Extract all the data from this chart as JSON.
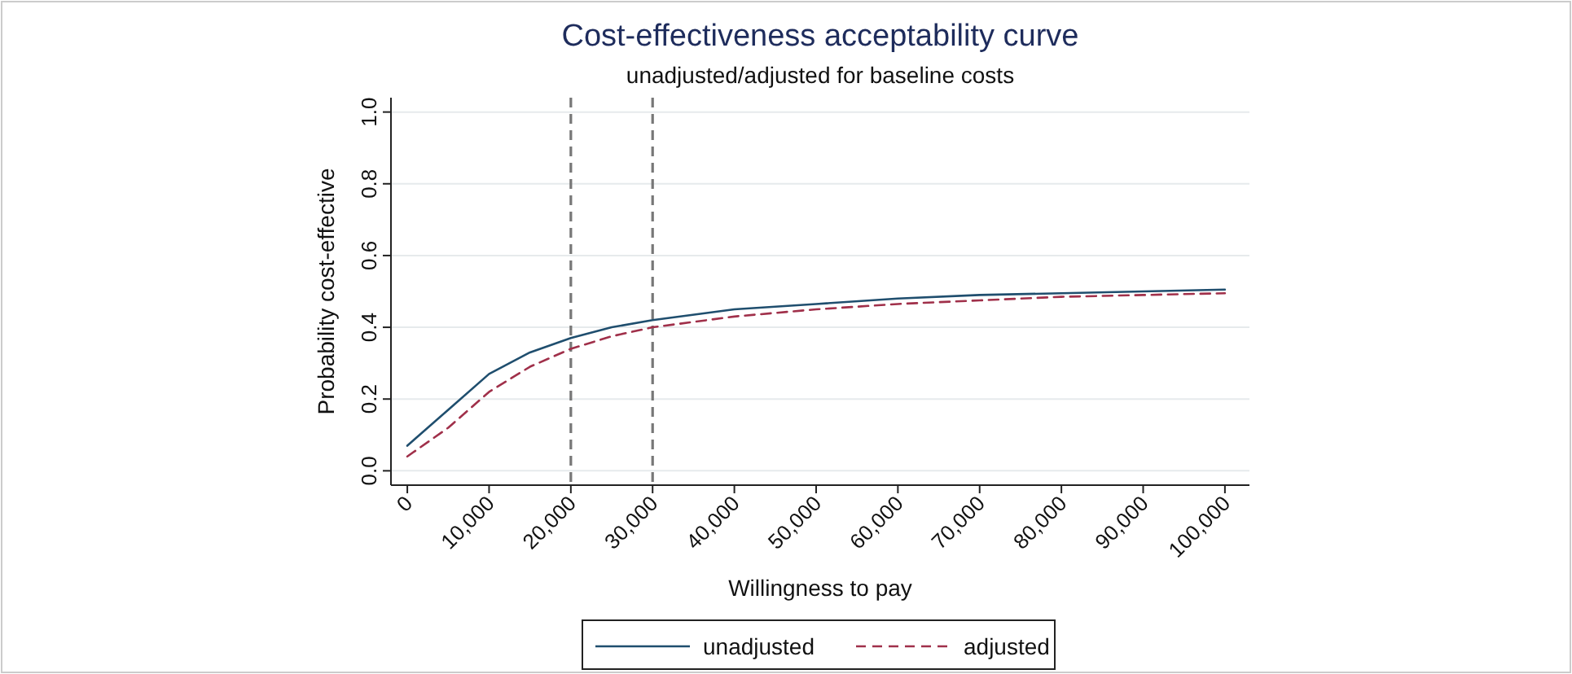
{
  "chart_data": {
    "type": "line",
    "title": "Cost-effectiveness acceptability curve",
    "subtitle": "unadjusted/adjusted for baseline costs",
    "xlabel": "Willingness to pay",
    "ylabel": "Probability cost-effective",
    "x": [
      0,
      5000,
      10000,
      15000,
      20000,
      25000,
      30000,
      40000,
      50000,
      60000,
      70000,
      80000,
      90000,
      100000
    ],
    "series": [
      {
        "name": "unadjusted",
        "color": "#1f4e6e",
        "line_style": "solid",
        "values": [
          0.07,
          0.17,
          0.27,
          0.33,
          0.37,
          0.4,
          0.42,
          0.45,
          0.465,
          0.48,
          0.49,
          0.495,
          0.5,
          0.505
        ]
      },
      {
        "name": "adjusted",
        "color": "#a0304a",
        "line_style": "dashed",
        "values": [
          0.04,
          0.12,
          0.22,
          0.29,
          0.34,
          0.375,
          0.4,
          0.43,
          0.45,
          0.465,
          0.475,
          0.485,
          0.49,
          0.495
        ]
      }
    ],
    "xlim": [
      -2000,
      103000
    ],
    "xticks": [
      {
        "value": 0,
        "label": "0"
      },
      {
        "value": 10000,
        "label": "10,000"
      },
      {
        "value": 20000,
        "label": "20,000"
      },
      {
        "value": 30000,
        "label": "30,000"
      },
      {
        "value": 40000,
        "label": "40,000"
      },
      {
        "value": 50000,
        "label": "50,000"
      },
      {
        "value": 60000,
        "label": "60,000"
      },
      {
        "value": 70000,
        "label": "70,000"
      },
      {
        "value": 80000,
        "label": "80,000"
      },
      {
        "value": 90000,
        "label": "90,000"
      },
      {
        "value": 100000,
        "label": "100,000"
      }
    ],
    "ylim": [
      -0.04,
      1.04
    ],
    "yticks": [
      {
        "value": 0,
        "label": "0.0"
      },
      {
        "value": 0.2,
        "label": "0.2"
      },
      {
        "value": 0.4,
        "label": "0.4"
      },
      {
        "value": 0.6,
        "label": "0.6"
      },
      {
        "value": 0.8,
        "label": "0.8"
      },
      {
        "value": 1,
        "label": "1.0"
      }
    ],
    "ref_lines": [
      {
        "axis": "x",
        "value": 20000,
        "color": "#777777",
        "line_style": "dashed"
      },
      {
        "axis": "x",
        "value": 30000,
        "color": "#777777",
        "line_style": "dashed"
      }
    ],
    "grid": "y",
    "legend": "bottom",
    "marker": "none"
  }
}
